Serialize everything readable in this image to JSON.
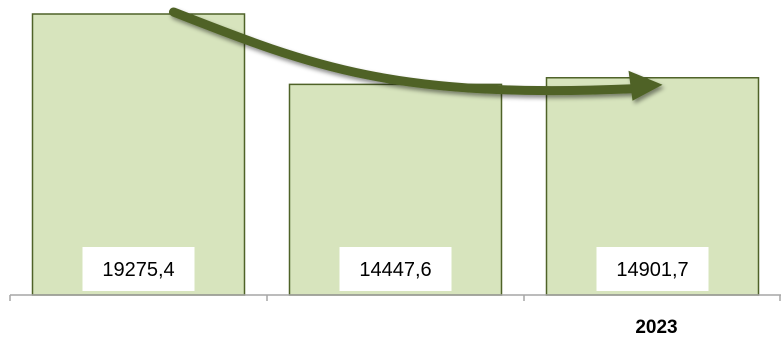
{
  "chart_data": {
    "type": "bar",
    "categories": [
      "",
      "",
      "2023"
    ],
    "values": [
      19275.4,
      14447.6,
      14901.7
    ],
    "data_labels": [
      "19275,4",
      "14447,6",
      "14901,7"
    ],
    "title": "",
    "xlabel": "",
    "ylabel": "",
    "ylim": [
      0,
      20000
    ],
    "grid": false,
    "legend": "none",
    "annotation": "trend-arrow",
    "colors": {
      "bar_fill": "#d7e4bd",
      "bar_stroke": "#4f6228",
      "arrow": "#4f6228",
      "axis": "#a6a6a6"
    }
  }
}
